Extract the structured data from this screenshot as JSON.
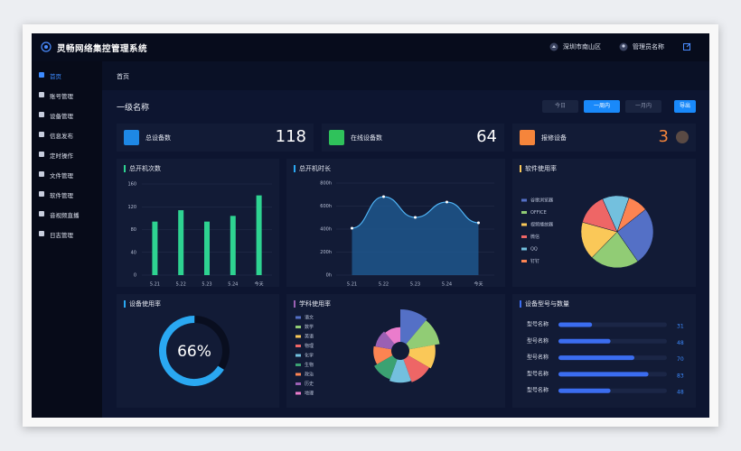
{
  "header": {
    "title": "灵畅网络集控管理系统",
    "location": "深圳市南山区",
    "user": "管理员名称"
  },
  "sidebar": {
    "items": [
      "首页",
      "账号管理",
      "设备管理",
      "信息发布",
      "定时操作",
      "文件管理",
      "软件管理",
      "音视频直播",
      "日志管理"
    ],
    "active": 0
  },
  "breadcrumb": "首页",
  "page_title": "一级名称",
  "filters": {
    "options": [
      "今日",
      "一周内",
      "一月内"
    ],
    "active": 1,
    "export": "导出"
  },
  "stats": [
    {
      "label": "总设备数",
      "value": 118,
      "color": "#ffffff",
      "icon_color": "#1e88e5"
    },
    {
      "label": "在线设备数",
      "value": 64,
      "color": "#ffffff",
      "icon_color": "#2fc25b"
    },
    {
      "label": "报修设备",
      "value": 3,
      "color": "#f5853b",
      "icon_color": "#f5853b"
    }
  ],
  "chart_data": [
    {
      "type": "bar",
      "title": "总开机次数",
      "title_color": "#2ed391",
      "categories": [
        "5.21",
        "5.22",
        "5.23",
        "5.24",
        "今天"
      ],
      "values": [
        94,
        114,
        94,
        104,
        140
      ],
      "color": "#2ed391",
      "ylim": [
        0,
        160
      ],
      "yticks": [
        0,
        40,
        80,
        120,
        160
      ],
      "grid": true
    },
    {
      "type": "area",
      "title": "总开机时长",
      "title_color": "#2aa8f2",
      "categories": [
        "5.21",
        "5.22",
        "5.23",
        "5.24",
        "今天"
      ],
      "values": [
        408,
        682,
        502,
        635,
        455
      ],
      "color": "#4fb3f5",
      "ylim": [
        0,
        800
      ],
      "yticks": [
        {
          "value": 0,
          "label": "0h"
        },
        {
          "value": 200,
          "label": "200h"
        },
        {
          "value": 400,
          "label": "400h"
        },
        {
          "value": 600,
          "label": "600h"
        },
        {
          "value": 800,
          "label": "800h"
        }
      ],
      "grid": true
    },
    {
      "type": "pie",
      "title": "软件使用率",
      "title_color": "#fac858",
      "categories": [
        "谷歌浏览器",
        "OFFICE",
        "视频播放器",
        "微信",
        "QQ",
        "钉钉"
      ],
      "values": [
        26,
        22,
        17,
        14,
        12,
        9
      ],
      "colors": [
        "#5470c6",
        "#91cc75",
        "#fac858",
        "#ee6666",
        "#73c0de",
        "#fc8452"
      ]
    },
    {
      "type": "gauge",
      "title": "设备使用率",
      "title_color": "#2aa8f2",
      "value": 66,
      "value_label": "66%",
      "ylim": [
        0,
        100
      ],
      "color": "#2aa8f2"
    },
    {
      "type": "rose",
      "title": "学科使用率",
      "title_color": "#9a60b4",
      "categories": [
        "语文",
        "数学",
        "英语",
        "物理",
        "化学",
        "生物",
        "政治",
        "历史",
        "地理"
      ],
      "values": [
        40,
        38,
        32,
        30,
        28,
        26,
        22,
        20,
        18
      ],
      "colors": [
        "#5470c6",
        "#91cc75",
        "#fac858",
        "#ee6666",
        "#73c0de",
        "#3ba272",
        "#fc8452",
        "#9a60b4",
        "#ea7ccc"
      ]
    },
    {
      "type": "hbar",
      "title": "设备型号与数量",
      "title_color": "#3b6df0",
      "categories": [
        "型号名称",
        "型号名称",
        "型号名称",
        "型号名称",
        "型号名称"
      ],
      "values": [
        31,
        48,
        70,
        83,
        48
      ],
      "color": "#3b6df0",
      "xlim": [
        0,
        100
      ]
    }
  ]
}
